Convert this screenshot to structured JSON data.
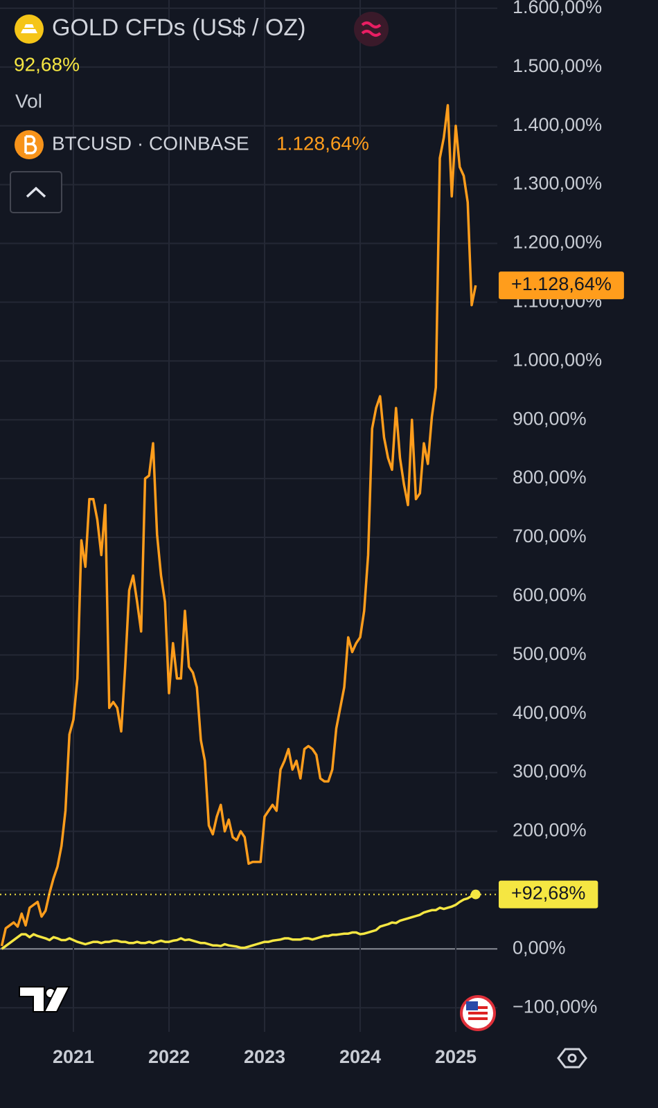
{
  "chart_data": {
    "type": "line",
    "indicator": "Vol",
    "categories": [
      null,
      null,
      null,
      null,
      null,
      null,
      null,
      null,
      null,
      null,
      null,
      null,
      null,
      null,
      null,
      null,
      null,
      null,
      "2021",
      null,
      null,
      null,
      null,
      null,
      null,
      null,
      null,
      null,
      null,
      null,
      null,
      null,
      null,
      null,
      null,
      null,
      null,
      null,
      null,
      null,
      null,
      null,
      "2022",
      null,
      null,
      null,
      null,
      null,
      null,
      null,
      null,
      null,
      null,
      null,
      null,
      null,
      null,
      null,
      null,
      null,
      null,
      null,
      null,
      null,
      null,
      null,
      "2023",
      null,
      null,
      null,
      null,
      null,
      null,
      null,
      null,
      null,
      null,
      null,
      null,
      null,
      null,
      null,
      null,
      null,
      null,
      null,
      null,
      null,
      null,
      null,
      "2024",
      null,
      null,
      null,
      null,
      null,
      null,
      null,
      null,
      null,
      null,
      null,
      null,
      null,
      null,
      null,
      null,
      null,
      null,
      null,
      null,
      null,
      null,
      null,
      "2025",
      null,
      null,
      null,
      null,
      null
    ],
    "series": [
      {
        "name": "GOLD CFDs (US$ / OZ)",
        "color": "#f5e642",
        "legend_value": "92,68%",
        "badge": "+92,68%",
        "values": [
          0,
          5,
          10,
          15,
          20,
          25,
          25,
          20,
          25,
          22,
          20,
          18,
          15,
          20,
          18,
          15,
          15,
          18,
          15,
          12,
          10,
          8,
          10,
          12,
          12,
          10,
          12,
          12,
          14,
          14,
          12,
          12,
          10,
          10,
          12,
          10,
          10,
          12,
          10,
          12,
          14,
          12,
          12,
          14,
          15,
          18,
          15,
          16,
          14,
          12,
          10,
          10,
          8,
          6,
          6,
          5,
          8,
          6,
          5,
          4,
          2,
          2,
          4,
          6,
          8,
          10,
          12,
          12,
          14,
          15,
          16,
          18,
          18,
          16,
          16,
          16,
          18,
          18,
          16,
          18,
          20,
          22,
          22,
          24,
          24,
          25,
          26,
          26,
          28,
          28,
          25,
          26,
          28,
          30,
          32,
          38,
          40,
          42,
          45,
          44,
          48,
          50,
          52,
          54,
          56,
          58,
          62,
          64,
          66,
          66,
          70,
          68,
          70,
          72,
          75,
          80,
          84,
          86,
          90,
          92.68
        ]
      },
      {
        "name": "BTCUSD · COINBASE",
        "color": "#ff9d1c",
        "legend_value": "1.128,64%",
        "badge": "+1.128,64%",
        "values": [
          5,
          35,
          40,
          45,
          38,
          60,
          40,
          70,
          75,
          80,
          55,
          65,
          95,
          120,
          140,
          175,
          235,
          365,
          390,
          460,
          695,
          650,
          765,
          765,
          730,
          670,
          755,
          410,
          420,
          410,
          370,
          480,
          610,
          635,
          590,
          540,
          800,
          805,
          860,
          705,
          635,
          590,
          435,
          520,
          460,
          460,
          575,
          480,
          470,
          445,
          355,
          320,
          210,
          195,
          225,
          245,
          200,
          220,
          190,
          185,
          200,
          190,
          145,
          148,
          148,
          148,
          225,
          235,
          245,
          235,
          305,
          320,
          340,
          305,
          320,
          290,
          340,
          345,
          340,
          330,
          290,
          285,
          285,
          305,
          375,
          410,
          445,
          530,
          505,
          520,
          530,
          575,
          670,
          885,
          920,
          940,
          870,
          835,
          815,
          920,
          835,
          790,
          755,
          900,
          765,
          775,
          860,
          825,
          905,
          955,
          1345,
          1380,
          1435,
          1280,
          1400,
          1330,
          1315,
          1270,
          1095,
          1128.64
        ]
      }
    ],
    "ylim": [
      -141,
      1614
    ],
    "yticks": [
      {
        "value": -100,
        "label": "−100,00%"
      },
      {
        "value": 0,
        "label": "0,00%"
      },
      {
        "value": 100,
        "label": "100,00%"
      },
      {
        "value": 200,
        "label": "200,00%"
      },
      {
        "value": 300,
        "label": "300,00%"
      },
      {
        "value": 400,
        "label": "400,00%"
      },
      {
        "value": 500,
        "label": "500,00%"
      },
      {
        "value": 600,
        "label": "600,00%"
      },
      {
        "value": 700,
        "label": "700,00%"
      },
      {
        "value": 800,
        "label": "800,00%"
      },
      {
        "value": 900,
        "label": "900,00%"
      },
      {
        "value": 1000,
        "label": "1.000,00%"
      },
      {
        "value": 1100,
        "label": "1.100,00%"
      },
      {
        "value": 1200,
        "label": "1.200,00%"
      },
      {
        "value": 1300,
        "label": "1.300,00%"
      },
      {
        "value": 1400,
        "label": "1.400,00%"
      },
      {
        "value": 1500,
        "label": "1.500,00%"
      },
      {
        "value": 1600,
        "label": "1.600,00%"
      }
    ],
    "grid": true
  }
}
